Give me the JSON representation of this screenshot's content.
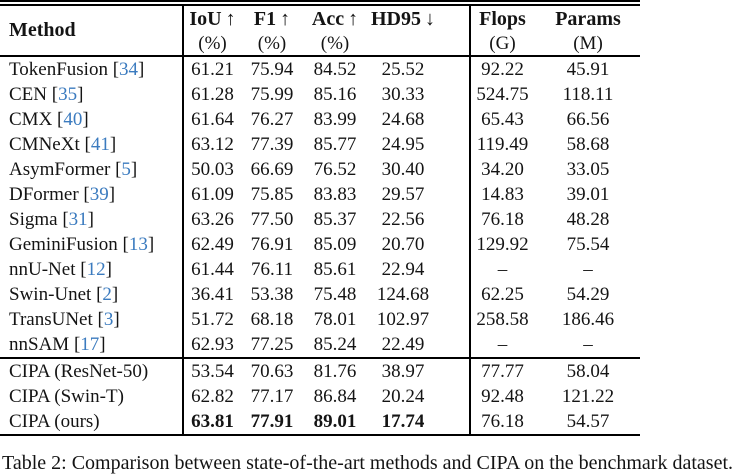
{
  "figure": {
    "caption": "Table 2: Comparison between state-of-the-art methods and CIPA on the benchmark dataset."
  },
  "colors": {
    "citation_blue": "#3b7bbf",
    "text": "#141414",
    "rule": "#000000"
  },
  "table": {
    "header": {
      "method_label": "Method",
      "metric_columns": [
        {
          "label": "IoU",
          "arrow": "↑",
          "unit": "(%)"
        },
        {
          "label": "F1",
          "arrow": "↑",
          "unit": "(%)"
        },
        {
          "label": "Acc",
          "arrow": "↑",
          "unit": "(%)"
        },
        {
          "label": "HD95",
          "arrow": "↓",
          "unit": ""
        },
        {
          "label": "Flops",
          "arrow": "",
          "unit": "(G)"
        },
        {
          "label": "Params",
          "arrow": "",
          "unit": "(M)"
        }
      ]
    },
    "groups": [
      {
        "name": "prior-methods",
        "rows": [
          {
            "method": "TokenFusion",
            "cite": "34",
            "values": [
              "61.21",
              "75.94",
              "84.52",
              "25.52",
              "92.22",
              "45.91"
            ]
          },
          {
            "method": "CEN",
            "cite": "35",
            "values": [
              "61.28",
              "75.99",
              "85.16",
              "30.33",
              "524.75",
              "118.11"
            ]
          },
          {
            "method": "CMX",
            "cite": "40",
            "values": [
              "61.64",
              "76.27",
              "83.99",
              "24.68",
              "65.43",
              "66.56"
            ]
          },
          {
            "method": "CMNeXt",
            "cite": "41",
            "values": [
              "63.12",
              "77.39",
              "85.77",
              "24.95",
              "119.49",
              "58.68"
            ]
          },
          {
            "method": "AsymFormer",
            "cite": "5",
            "values": [
              "50.03",
              "66.69",
              "76.52",
              "30.40",
              "34.20",
              "33.05"
            ]
          },
          {
            "method": "DFormer",
            "cite": "39",
            "values": [
              "61.09",
              "75.85",
              "83.83",
              "29.57",
              "14.83",
              "39.01"
            ]
          },
          {
            "method": "Sigma",
            "cite": "31",
            "values": [
              "63.26",
              "77.50",
              "85.37",
              "22.56",
              "76.18",
              "48.28"
            ]
          },
          {
            "method": "GeminiFusion",
            "cite": "13",
            "values": [
              "62.49",
              "76.91",
              "85.09",
              "20.70",
              "129.92",
              "75.54"
            ]
          },
          {
            "method": "nnU-Net",
            "cite": "12",
            "values": [
              "61.44",
              "76.11",
              "85.61",
              "22.94",
              "–",
              "–"
            ]
          },
          {
            "method": "Swin-Unet",
            "cite": "2",
            "values": [
              "36.41",
              "53.38",
              "75.48",
              "124.68",
              "62.25",
              "54.29"
            ]
          },
          {
            "method": "TransUNet",
            "cite": "3",
            "values": [
              "51.72",
              "68.18",
              "78.01",
              "102.97",
              "258.58",
              "186.46"
            ]
          },
          {
            "method": "nnSAM",
            "cite": "17",
            "values": [
              "62.93",
              "77.25",
              "85.24",
              "22.49",
              "–",
              "–"
            ]
          }
        ]
      },
      {
        "name": "cipa-variants",
        "rows": [
          {
            "method": "CIPA (ResNet-50)",
            "cite": "",
            "values": [
              "53.54",
              "70.63",
              "81.76",
              "38.97",
              "77.77",
              "58.04"
            ]
          },
          {
            "method": "CIPA (Swin-T)",
            "cite": "",
            "values": [
              "62.82",
              "77.17",
              "86.84",
              "20.24",
              "92.48",
              "121.22"
            ]
          },
          {
            "method": "CIPA (ours)",
            "cite": "",
            "values": [
              "63.81",
              "77.91",
              "89.01",
              "17.74",
              "76.18",
              "54.57"
            ],
            "bold_mask": [
              true,
              true,
              true,
              true,
              false,
              false
            ]
          }
        ]
      }
    ]
  }
}
